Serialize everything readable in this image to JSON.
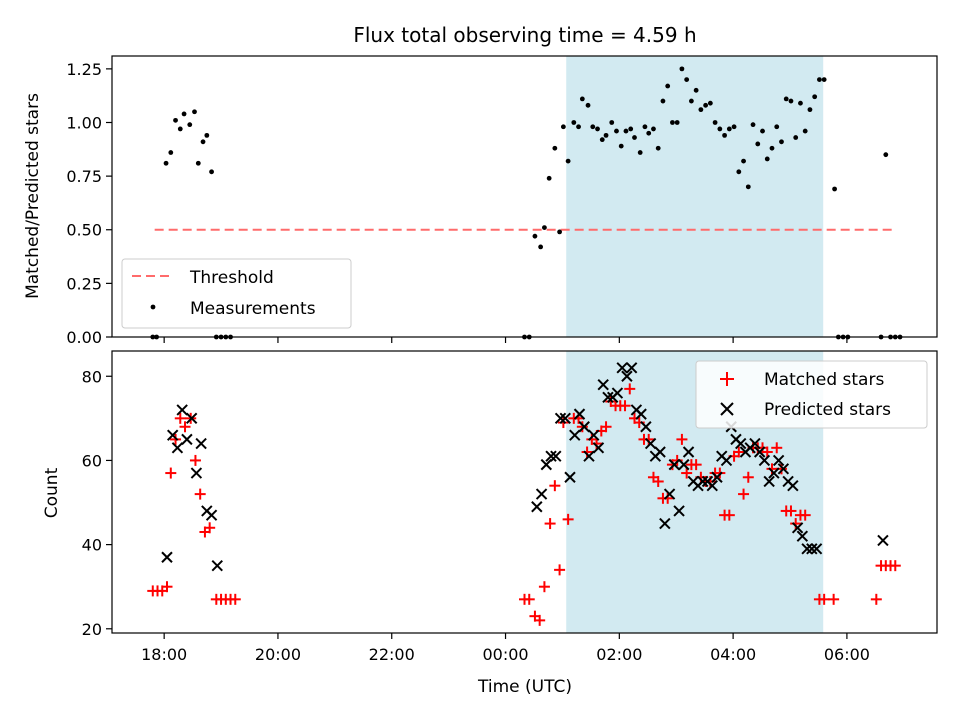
{
  "chart_data": [
    {
      "type": "scatter",
      "title": "Flux total observing time = 4.59 h",
      "xlabel": "",
      "ylabel": "Matched/Predicted stars",
      "x_axis": "time",
      "xlim": [
        "17:05",
        "07:35"
      ],
      "ylim": [
        0,
        1.31
      ],
      "yticks": [
        "0.00",
        "0.25",
        "0.50",
        "0.75",
        "1.00",
        "1.25"
      ],
      "shaded_region": [
        "01:04",
        "05:35"
      ],
      "grid": false,
      "legend": {
        "placement": "lower-left",
        "entries": [
          "Threshold",
          "Measurements"
        ]
      },
      "threshold": {
        "name": "Threshold",
        "y": 0.5,
        "x": [
          "17:50",
          "06:50"
        ],
        "color": "#ff6b6b"
      },
      "series": [
        {
          "name": "Measurements",
          "color": "#000000",
          "points": [
            [
              "17:48",
              0
            ],
            [
              "17:52",
              0
            ],
            [
              "18:02",
              0.81
            ],
            [
              "18:07",
              0.86
            ],
            [
              "18:12",
              1.01
            ],
            [
              "18:17",
              0.97
            ],
            [
              "18:21",
              1.04
            ],
            [
              "18:27",
              0.99
            ],
            [
              "18:32",
              1.05
            ],
            [
              "18:36",
              0.81
            ],
            [
              "18:41",
              0.91
            ],
            [
              "18:45",
              0.94
            ],
            [
              "18:50",
              0.77
            ],
            [
              "18:55",
              0
            ],
            [
              "19:00",
              0
            ],
            [
              "19:05",
              0
            ],
            [
              "19:10",
              0
            ],
            [
              "00:20",
              0
            ],
            [
              "00:25",
              0
            ],
            [
              "00:31",
              0.47
            ],
            [
              "00:37",
              0.42
            ],
            [
              "00:41",
              0.51
            ],
            [
              "00:46",
              0.74
            ],
            [
              "00:52",
              0.88
            ],
            [
              "00:57",
              0.49
            ],
            [
              "01:01",
              0.98
            ],
            [
              "01:06",
              0.82
            ],
            [
              "01:12",
              1.0
            ],
            [
              "01:17",
              0.98
            ],
            [
              "01:21",
              1.11
            ],
            [
              "01:27",
              1.08
            ],
            [
              "01:32",
              0.98
            ],
            [
              "01:37",
              0.97
            ],
            [
              "01:42",
              0.92
            ],
            [
              "01:46",
              0.94
            ],
            [
              "01:52",
              1.0
            ],
            [
              "01:57",
              0.96
            ],
            [
              "02:02",
              0.89
            ],
            [
              "02:07",
              0.96
            ],
            [
              "02:12",
              0.97
            ],
            [
              "02:16",
              0.93
            ],
            [
              "02:22",
              0.86
            ],
            [
              "02:27",
              0.98
            ],
            [
              "02:31",
              0.95
            ],
            [
              "02:36",
              0.97
            ],
            [
              "02:41",
              0.88
            ],
            [
              "02:46",
              1.1
            ],
            [
              "02:51",
              1.17
            ],
            [
              "02:56",
              1.0
            ],
            [
              "03:01",
              1.0
            ],
            [
              "03:06",
              1.25
            ],
            [
              "03:11",
              1.2
            ],
            [
              "03:16",
              1.1
            ],
            [
              "03:21",
              1.15
            ],
            [
              "03:26",
              1.06
            ],
            [
              "03:31",
              1.08
            ],
            [
              "03:36",
              1.09
            ],
            [
              "03:41",
              1.0
            ],
            [
              "03:46",
              0.97
            ],
            [
              "03:51",
              0.94
            ],
            [
              "03:56",
              0.97
            ],
            [
              "04:01",
              0.98
            ],
            [
              "04:06",
              0.77
            ],
            [
              "04:11",
              0.82
            ],
            [
              "04:16",
              0.7
            ],
            [
              "04:21",
              0.99
            ],
            [
              "04:26",
              0.9
            ],
            [
              "04:31",
              0.96
            ],
            [
              "04:36",
              0.83
            ],
            [
              "04:41",
              0.88
            ],
            [
              "04:46",
              0.98
            ],
            [
              "04:51",
              0.91
            ],
            [
              "04:56",
              1.11
            ],
            [
              "05:01",
              1.1
            ],
            [
              "05:06",
              0.93
            ],
            [
              "05:11",
              1.09
            ],
            [
              "05:16",
              0.96
            ],
            [
              "05:21",
              1.06
            ],
            [
              "05:26",
              1.12
            ],
            [
              "05:31",
              1.2
            ],
            [
              "05:36",
              1.2
            ],
            [
              "05:47",
              0.69
            ],
            [
              "05:51",
              0
            ],
            [
              "05:56",
              0
            ],
            [
              "06:01",
              0
            ],
            [
              "06:36",
              0
            ],
            [
              "06:41",
              0.85
            ],
            [
              "06:46",
              0
            ],
            [
              "06:51",
              0
            ],
            [
              "06:56",
              0
            ]
          ]
        }
      ]
    },
    {
      "type": "scatter",
      "title": "",
      "xlabel": "Time (UTC)",
      "ylabel": "Count",
      "x_axis": "time",
      "xlim": [
        "17:05",
        "07:35"
      ],
      "ylim": [
        19,
        86
      ],
      "xticks": [
        "18:00",
        "20:00",
        "22:00",
        "00:00",
        "02:00",
        "04:00",
        "06:00"
      ],
      "yticks": [
        "20",
        "40",
        "60",
        "80"
      ],
      "shaded_region": [
        "01:04",
        "05:35"
      ],
      "grid": false,
      "legend": {
        "placement": "upper-right",
        "entries": [
          "Matched stars",
          "Predicted stars"
        ]
      },
      "series": [
        {
          "name": "Matched stars",
          "marker": "plus",
          "color": "#ff0000",
          "points": [
            [
              "17:48",
              29
            ],
            [
              "17:53",
              29
            ],
            [
              "17:58",
              29
            ],
            [
              "18:03",
              30
            ],
            [
              "18:07",
              57
            ],
            [
              "18:12",
              65
            ],
            [
              "18:17",
              70
            ],
            [
              "18:22",
              68
            ],
            [
              "18:28",
              70
            ],
            [
              "18:33",
              60
            ],
            [
              "18:38",
              52
            ],
            [
              "18:43",
              43
            ],
            [
              "18:48",
              44
            ],
            [
              "18:55",
              27
            ],
            [
              "19:00",
              27
            ],
            [
              "19:05",
              27
            ],
            [
              "19:10",
              27
            ],
            [
              "19:15",
              27
            ],
            [
              "00:20",
              27
            ],
            [
              "00:25",
              27
            ],
            [
              "00:31",
              23
            ],
            [
              "00:36",
              22
            ],
            [
              "00:41",
              30
            ],
            [
              "00:47",
              45
            ],
            [
              "00:52",
              54
            ],
            [
              "00:57",
              34
            ],
            [
              "01:01",
              69
            ],
            [
              "01:06",
              46
            ],
            [
              "01:12",
              70
            ],
            [
              "01:17",
              70
            ],
            [
              "01:21",
              68
            ],
            [
              "01:26",
              62
            ],
            [
              "01:31",
              65
            ],
            [
              "01:36",
              64
            ],
            [
              "01:41",
              67
            ],
            [
              "01:46",
              68
            ],
            [
              "01:51",
              74
            ],
            [
              "01:56",
              73
            ],
            [
              "02:01",
              73
            ],
            [
              "02:06",
              73
            ],
            [
              "02:11",
              77
            ],
            [
              "02:16",
              70
            ],
            [
              "02:21",
              69
            ],
            [
              "02:26",
              65
            ],
            [
              "02:31",
              65
            ],
            [
              "02:36",
              56
            ],
            [
              "02:41",
              55
            ],
            [
              "02:46",
              51
            ],
            [
              "02:51",
              51
            ],
            [
              "02:56",
              59
            ],
            [
              "03:01",
              60
            ],
            [
              "03:06",
              65
            ],
            [
              "03:11",
              57
            ],
            [
              "03:16",
              59
            ],
            [
              "03:21",
              59
            ],
            [
              "03:26",
              56
            ],
            [
              "03:31",
              55
            ],
            [
              "03:36",
              55
            ],
            [
              "03:41",
              57
            ],
            [
              "03:46",
              57
            ],
            [
              "03:51",
              47
            ],
            [
              "03:56",
              47
            ],
            [
              "04:01",
              61
            ],
            [
              "04:06",
              62
            ],
            [
              "04:11",
              52
            ],
            [
              "04:16",
              56
            ],
            [
              "04:21",
              63
            ],
            [
              "04:26",
              63
            ],
            [
              "04:31",
              63
            ],
            [
              "04:36",
              62
            ],
            [
              "04:41",
              58
            ],
            [
              "04:46",
              63
            ],
            [
              "04:51",
              58
            ],
            [
              "04:56",
              48
            ],
            [
              "05:01",
              48
            ],
            [
              "05:06",
              45
            ],
            [
              "05:11",
              47
            ],
            [
              "05:16",
              47
            ],
            [
              "05:31",
              27
            ],
            [
              "05:36",
              27
            ],
            [
              "05:46",
              27
            ],
            [
              "06:31",
              27
            ],
            [
              "06:36",
              35
            ],
            [
              "06:41",
              35
            ],
            [
              "06:46",
              35
            ],
            [
              "06:51",
              35
            ]
          ]
        },
        {
          "name": "Predicted stars",
          "marker": "x",
          "color": "#000000",
          "points": [
            [
              "18:03",
              37
            ],
            [
              "18:09",
              66
            ],
            [
              "18:14",
              63
            ],
            [
              "18:19",
              72
            ],
            [
              "18:24",
              65
            ],
            [
              "18:29",
              70
            ],
            [
              "18:34",
              57
            ],
            [
              "18:39",
              64
            ],
            [
              "18:45",
              48
            ],
            [
              "18:50",
              47
            ],
            [
              "18:56",
              35
            ],
            [
              "00:33",
              49
            ],
            [
              "00:38",
              52
            ],
            [
              "00:43",
              59
            ],
            [
              "00:48",
              61
            ],
            [
              "00:53",
              61
            ],
            [
              "00:58",
              70
            ],
            [
              "01:03",
              70
            ],
            [
              "01:08",
              56
            ],
            [
              "01:13",
              66
            ],
            [
              "01:18",
              71
            ],
            [
              "01:23",
              68
            ],
            [
              "01:28",
              61
            ],
            [
              "01:33",
              66
            ],
            [
              "01:38",
              63
            ],
            [
              "01:43",
              78
            ],
            [
              "01:48",
              75
            ],
            [
              "01:53",
              75
            ],
            [
              "01:58",
              76
            ],
            [
              "02:03",
              82
            ],
            [
              "02:08",
              80
            ],
            [
              "02:13",
              82
            ],
            [
              "02:18",
              72
            ],
            [
              "02:23",
              71
            ],
            [
              "02:28",
              68
            ],
            [
              "02:33",
              64
            ],
            [
              "02:38",
              61
            ],
            [
              "02:43",
              62
            ],
            [
              "02:48",
              45
            ],
            [
              "02:53",
              52
            ],
            [
              "02:58",
              59
            ],
            [
              "03:03",
              48
            ],
            [
              "03:08",
              59
            ],
            [
              "03:13",
              62
            ],
            [
              "03:18",
              55
            ],
            [
              "03:23",
              54
            ],
            [
              "03:28",
              55
            ],
            [
              "03:33",
              55
            ],
            [
              "03:38",
              54
            ],
            [
              "03:43",
              56
            ],
            [
              "03:48",
              61
            ],
            [
              "03:53",
              60
            ],
            [
              "03:58",
              68
            ],
            [
              "04:03",
              65
            ],
            [
              "04:08",
              64
            ],
            [
              "04:13",
              62
            ],
            [
              "04:18",
              63
            ],
            [
              "04:23",
              64
            ],
            [
              "04:28",
              62
            ],
            [
              "04:33",
              60
            ],
            [
              "04:38",
              55
            ],
            [
              "04:43",
              57
            ],
            [
              "04:48",
              60
            ],
            [
              "04:53",
              58
            ],
            [
              "04:58",
              55
            ],
            [
              "05:03",
              54
            ],
            [
              "05:08",
              44
            ],
            [
              "05:13",
              42
            ],
            [
              "05:18",
              39
            ],
            [
              "05:23",
              39
            ],
            [
              "05:28",
              39
            ],
            [
              "06:38",
              41
            ]
          ]
        }
      ]
    }
  ]
}
